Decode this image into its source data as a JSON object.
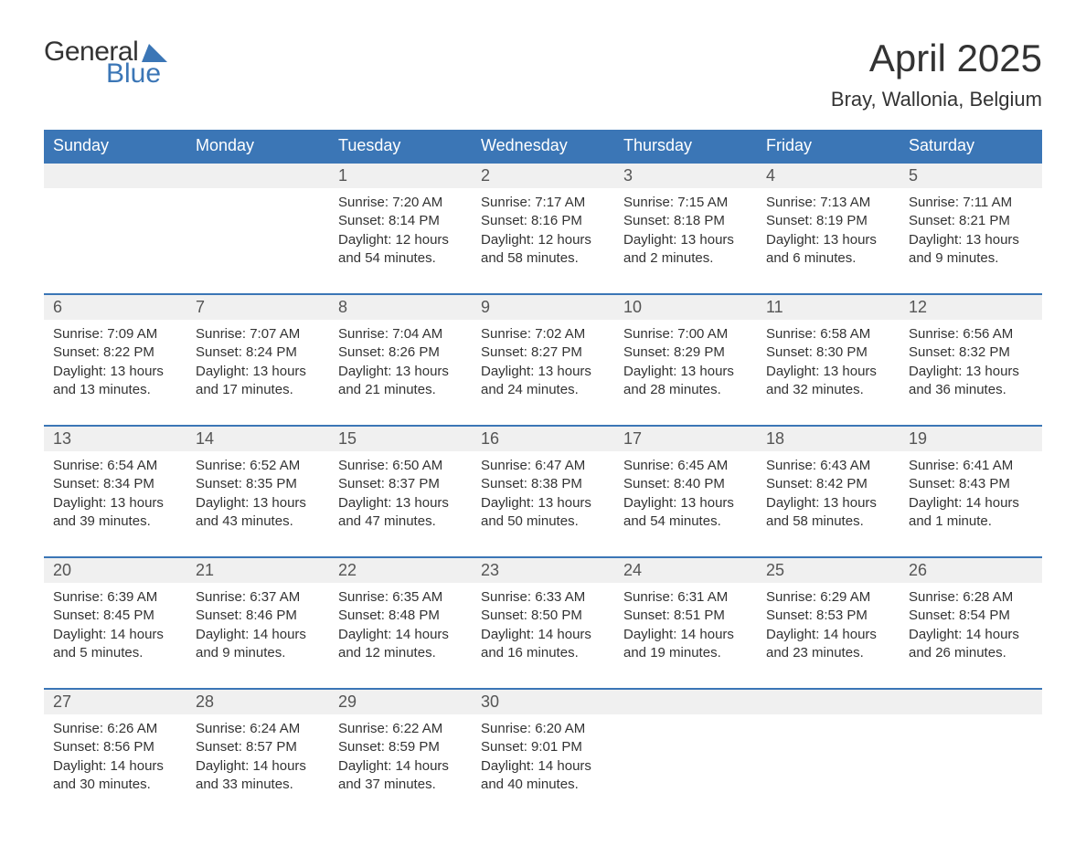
{
  "logo": {
    "general": "General",
    "blue": "Blue",
    "icon_color": "#3b76b6"
  },
  "title": "April 2025",
  "location": "Bray, Wallonia, Belgium",
  "colors": {
    "header_bg": "#3b76b6",
    "header_text": "#ffffff",
    "daynum_bg": "#f0f0f0",
    "body_text": "#333333",
    "row_border": "#3b76b6"
  },
  "days_of_week": [
    "Sunday",
    "Monday",
    "Tuesday",
    "Wednesday",
    "Thursday",
    "Friday",
    "Saturday"
  ],
  "weeks": [
    [
      null,
      null,
      {
        "n": "1",
        "sunrise": "7:20 AM",
        "sunset": "8:14 PM",
        "daylight": "12 hours and 54 minutes."
      },
      {
        "n": "2",
        "sunrise": "7:17 AM",
        "sunset": "8:16 PM",
        "daylight": "12 hours and 58 minutes."
      },
      {
        "n": "3",
        "sunrise": "7:15 AM",
        "sunset": "8:18 PM",
        "daylight": "13 hours and 2 minutes."
      },
      {
        "n": "4",
        "sunrise": "7:13 AM",
        "sunset": "8:19 PM",
        "daylight": "13 hours and 6 minutes."
      },
      {
        "n": "5",
        "sunrise": "7:11 AM",
        "sunset": "8:21 PM",
        "daylight": "13 hours and 9 minutes."
      }
    ],
    [
      {
        "n": "6",
        "sunrise": "7:09 AM",
        "sunset": "8:22 PM",
        "daylight": "13 hours and 13 minutes."
      },
      {
        "n": "7",
        "sunrise": "7:07 AM",
        "sunset": "8:24 PM",
        "daylight": "13 hours and 17 minutes."
      },
      {
        "n": "8",
        "sunrise": "7:04 AM",
        "sunset": "8:26 PM",
        "daylight": "13 hours and 21 minutes."
      },
      {
        "n": "9",
        "sunrise": "7:02 AM",
        "sunset": "8:27 PM",
        "daylight": "13 hours and 24 minutes."
      },
      {
        "n": "10",
        "sunrise": "7:00 AM",
        "sunset": "8:29 PM",
        "daylight": "13 hours and 28 minutes."
      },
      {
        "n": "11",
        "sunrise": "6:58 AM",
        "sunset": "8:30 PM",
        "daylight": "13 hours and 32 minutes."
      },
      {
        "n": "12",
        "sunrise": "6:56 AM",
        "sunset": "8:32 PM",
        "daylight": "13 hours and 36 minutes."
      }
    ],
    [
      {
        "n": "13",
        "sunrise": "6:54 AM",
        "sunset": "8:34 PM",
        "daylight": "13 hours and 39 minutes."
      },
      {
        "n": "14",
        "sunrise": "6:52 AM",
        "sunset": "8:35 PM",
        "daylight": "13 hours and 43 minutes."
      },
      {
        "n": "15",
        "sunrise": "6:50 AM",
        "sunset": "8:37 PM",
        "daylight": "13 hours and 47 minutes."
      },
      {
        "n": "16",
        "sunrise": "6:47 AM",
        "sunset": "8:38 PM",
        "daylight": "13 hours and 50 minutes."
      },
      {
        "n": "17",
        "sunrise": "6:45 AM",
        "sunset": "8:40 PM",
        "daylight": "13 hours and 54 minutes."
      },
      {
        "n": "18",
        "sunrise": "6:43 AM",
        "sunset": "8:42 PM",
        "daylight": "13 hours and 58 minutes."
      },
      {
        "n": "19",
        "sunrise": "6:41 AM",
        "sunset": "8:43 PM",
        "daylight": "14 hours and 1 minute."
      }
    ],
    [
      {
        "n": "20",
        "sunrise": "6:39 AM",
        "sunset": "8:45 PM",
        "daylight": "14 hours and 5 minutes."
      },
      {
        "n": "21",
        "sunrise": "6:37 AM",
        "sunset": "8:46 PM",
        "daylight": "14 hours and 9 minutes."
      },
      {
        "n": "22",
        "sunrise": "6:35 AM",
        "sunset": "8:48 PM",
        "daylight": "14 hours and 12 minutes."
      },
      {
        "n": "23",
        "sunrise": "6:33 AM",
        "sunset": "8:50 PM",
        "daylight": "14 hours and 16 minutes."
      },
      {
        "n": "24",
        "sunrise": "6:31 AM",
        "sunset": "8:51 PM",
        "daylight": "14 hours and 19 minutes."
      },
      {
        "n": "25",
        "sunrise": "6:29 AM",
        "sunset": "8:53 PM",
        "daylight": "14 hours and 23 minutes."
      },
      {
        "n": "26",
        "sunrise": "6:28 AM",
        "sunset": "8:54 PM",
        "daylight": "14 hours and 26 minutes."
      }
    ],
    [
      {
        "n": "27",
        "sunrise": "6:26 AM",
        "sunset": "8:56 PM",
        "daylight": "14 hours and 30 minutes."
      },
      {
        "n": "28",
        "sunrise": "6:24 AM",
        "sunset": "8:57 PM",
        "daylight": "14 hours and 33 minutes."
      },
      {
        "n": "29",
        "sunrise": "6:22 AM",
        "sunset": "8:59 PM",
        "daylight": "14 hours and 37 minutes."
      },
      {
        "n": "30",
        "sunrise": "6:20 AM",
        "sunset": "9:01 PM",
        "daylight": "14 hours and 40 minutes."
      },
      null,
      null,
      null
    ]
  ],
  "labels": {
    "sunrise": "Sunrise:",
    "sunset": "Sunset:",
    "daylight": "Daylight:"
  }
}
